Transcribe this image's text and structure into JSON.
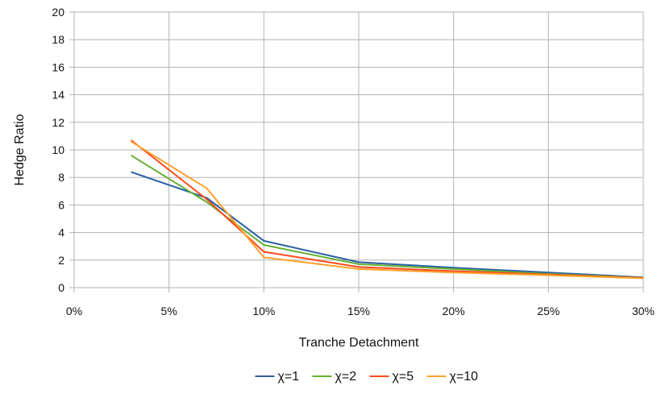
{
  "chart_data": {
    "type": "line",
    "xlabel": "Tranche Detachment",
    "ylabel": "Hedge Ratio",
    "xlim": [
      0,
      30
    ],
    "ylim": [
      0,
      20
    ],
    "x_ticks": [
      0,
      5,
      10,
      15,
      20,
      25,
      30
    ],
    "x_tick_labels": [
      "0%",
      "5%",
      "10%",
      "15%",
      "20%",
      "25%",
      "30%"
    ],
    "y_ticks": [
      0,
      2,
      4,
      6,
      8,
      10,
      12,
      14,
      16,
      18,
      20
    ],
    "y_tick_labels": [
      "0",
      "2",
      "4",
      "6",
      "8",
      "10",
      "12",
      "14",
      "16",
      "18",
      "20"
    ],
    "grid": true,
    "legend_position": "bottom",
    "x": [
      3,
      7,
      10,
      15,
      20,
      25,
      30
    ],
    "series": [
      {
        "name": "χ=1",
        "color": "#2a5fa4",
        "values": [
          8.4,
          6.5,
          3.4,
          1.85,
          1.45,
          1.1,
          0.75
        ]
      },
      {
        "name": "χ=2",
        "color": "#66b032",
        "values": [
          9.6,
          6.2,
          3.1,
          1.7,
          1.35,
          1.0,
          0.72
        ]
      },
      {
        "name": "χ=5",
        "color": "#ff4a1c",
        "values": [
          10.7,
          6.4,
          2.6,
          1.5,
          1.2,
          0.95,
          0.7
        ]
      },
      {
        "name": "χ=10",
        "color": "#ffa12b",
        "values": [
          10.6,
          7.2,
          2.2,
          1.35,
          1.1,
          0.9,
          0.68
        ]
      }
    ]
  }
}
